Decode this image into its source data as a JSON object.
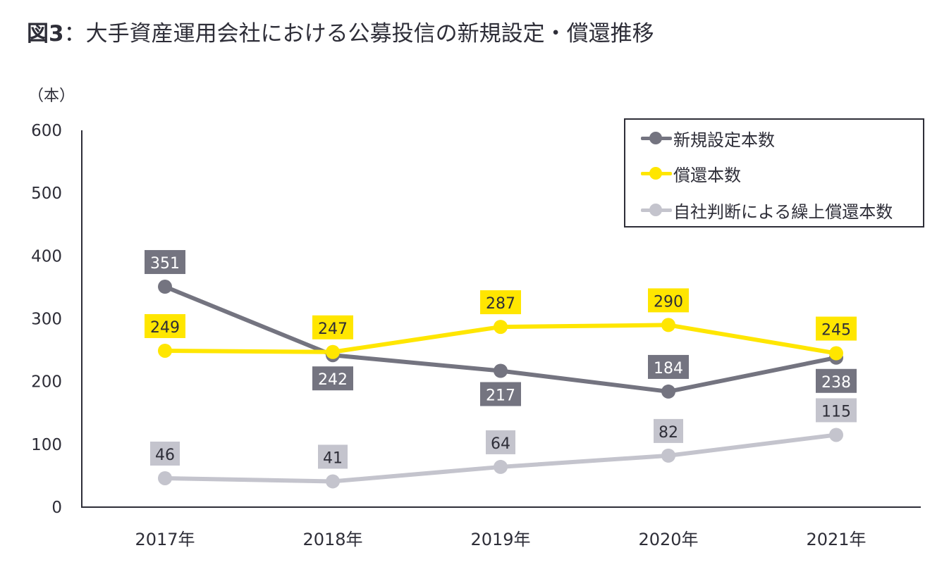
{
  "title": {
    "figure_label": "図3",
    "separator": "：",
    "text": "大手資産運用会社における公募投信の新規設定・償還推移"
  },
  "colors": {
    "series_new": "#747480",
    "series_redeem": "#ffe600",
    "series_early": "#c4c4cd",
    "axis": "#2e2e38",
    "label_text_dark": "#2e2e38",
    "label_text_light": "#ffffff"
  },
  "chart_data": {
    "type": "line",
    "title": "図3：大手資産運用会社における公募投信の新規設定・償還推移",
    "xlabel": "",
    "ylabel": "（本）",
    "categories": [
      "2017年",
      "2018年",
      "2019年",
      "2020年",
      "2021年"
    ],
    "ylim": [
      0,
      600
    ],
    "yticks": [
      0,
      100,
      200,
      300,
      400,
      500,
      600
    ],
    "grid": false,
    "legend_position": "top-right",
    "series": [
      {
        "name": "新規設定本数",
        "key": "series_new",
        "values": [
          351,
          242,
          217,
          184,
          238
        ],
        "label_pos": [
          "above",
          "below",
          "below",
          "above",
          "below"
        ]
      },
      {
        "name": "償還本数",
        "key": "series_redeem",
        "values": [
          249,
          247,
          287,
          290,
          245
        ],
        "label_pos": [
          "above",
          "above",
          "above",
          "above",
          "above"
        ]
      },
      {
        "name": "自社判断による繰上償還本数",
        "key": "series_early",
        "values": [
          46,
          41,
          64,
          82,
          115
        ],
        "label_pos": [
          "above",
          "above",
          "above",
          "above",
          "above"
        ]
      }
    ]
  }
}
